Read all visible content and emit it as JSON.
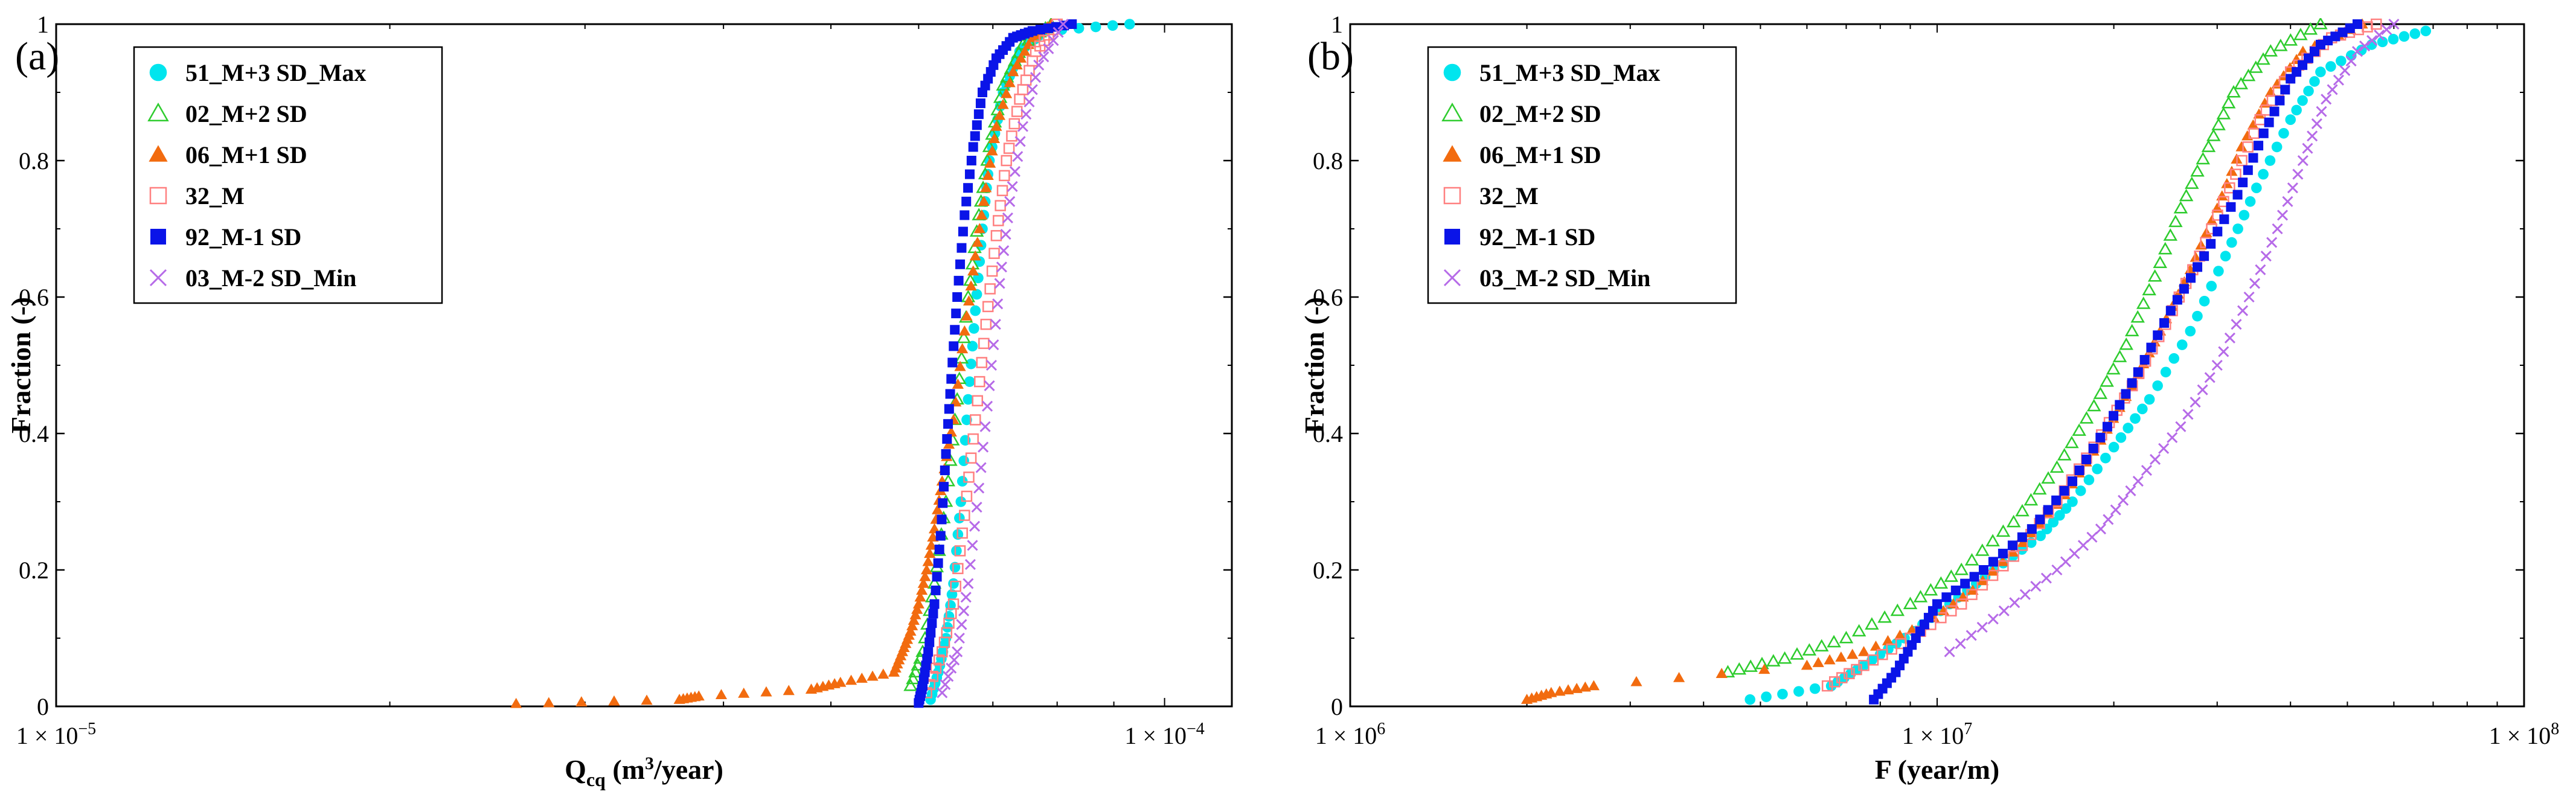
{
  "chart_data": [
    {
      "type": "scatter",
      "panel_label": "(a)",
      "xscale": "log",
      "xlim": [
        1e-05,
        0.000115
      ],
      "ylim": [
        0,
        1
      ],
      "xlabel_main": "Q",
      "xlabel_sub": "cq",
      "xlabel_unit_pre": " (m",
      "xlabel_unit_sup": "3",
      "xlabel_unit_post": "/year)",
      "ylabel": "Fraction (-)",
      "x_ticks": [
        {
          "value": 1e-05,
          "mant": "1",
          "base": " × 10",
          "exp": "−5"
        },
        {
          "value": 0.0001,
          "mant": "1",
          "base": " × 10",
          "exp": "−4"
        }
      ],
      "y_ticks": [
        {
          "value": 0,
          "label": "0"
        },
        {
          "value": 0.2,
          "label": "0.2"
        },
        {
          "value": 0.4,
          "label": "0.4"
        },
        {
          "value": 0.6,
          "label": "0.6"
        },
        {
          "value": 0.8,
          "label": "0.8"
        },
        {
          "value": 1,
          "label": "1"
        }
      ],
      "legend_position": "top-left",
      "series": [
        {
          "name": "51_M+3 SD_Max",
          "marker": "circle",
          "color": "#00e5ee",
          "filled": true,
          "points": [
            [
              6.15e-05,
              0.01
            ],
            [
              6.25e-05,
              0.05
            ],
            [
              6.35e-05,
              0.1
            ],
            [
              6.45e-05,
              0.18
            ],
            [
              6.55e-05,
              0.3
            ],
            [
              6.65e-05,
              0.45
            ],
            [
              6.75e-05,
              0.58
            ],
            [
              6.85e-05,
              0.7
            ],
            [
              6.95e-05,
              0.8
            ],
            [
              7.15e-05,
              0.9
            ],
            [
              7.4e-05,
              0.96
            ],
            [
              7.8e-05,
              0.99
            ],
            [
              9.3e-05,
              1.0
            ]
          ]
        },
        {
          "name": "02_M+2 SD",
          "marker": "triangle-open",
          "color": "#2ecc2e",
          "filled": false,
          "points": [
            [
              5.9e-05,
              0.03
            ],
            [
              6.05e-05,
              0.08
            ],
            [
              6.2e-05,
              0.18
            ],
            [
              6.35e-05,
              0.3
            ],
            [
              6.5e-05,
              0.45
            ],
            [
              6.65e-05,
              0.6
            ],
            [
              6.8e-05,
              0.72
            ],
            [
              6.95e-05,
              0.82
            ],
            [
              7.15e-05,
              0.91
            ],
            [
              7.45e-05,
              0.97
            ],
            [
              7.9e-05,
              1.0
            ]
          ]
        },
        {
          "name": "06_M+1 SD",
          "marker": "triangle",
          "color": "#f26b0f",
          "filled": true,
          "points": [
            [
              2.6e-05,
              0.004
            ],
            [
              3.65e-05,
              0.01
            ],
            [
              3.8e-05,
              0.015
            ],
            [
              4.8e-05,
              0.025
            ],
            [
              5.1e-05,
              0.035
            ],
            [
              5.7e-05,
              0.05
            ],
            [
              5.8e-05,
              0.08
            ],
            [
              5.9e-05,
              0.11
            ],
            [
              6e-05,
              0.15
            ],
            [
              6.1e-05,
              0.2
            ],
            [
              6.2e-05,
              0.26
            ],
            [
              6.3e-05,
              0.33
            ],
            [
              6.45e-05,
              0.42
            ],
            [
              6.6e-05,
              0.55
            ],
            [
              6.75e-05,
              0.66
            ],
            [
              6.9e-05,
              0.76
            ],
            [
              7.05e-05,
              0.85
            ],
            [
              7.3e-05,
              0.93
            ],
            [
              7.6e-05,
              0.98
            ],
            [
              7.9e-05,
              1.0
            ]
          ]
        },
        {
          "name": "32_M",
          "marker": "square-open",
          "color": "#ff8080",
          "filled": false,
          "points": [
            [
              6.1e-05,
              0.02
            ],
            [
              6.3e-05,
              0.08
            ],
            [
              6.45e-05,
              0.15
            ],
            [
              6.6e-05,
              0.28
            ],
            [
              6.75e-05,
              0.42
            ],
            [
              6.9e-05,
              0.56
            ],
            [
              7.05e-05,
              0.69
            ],
            [
              7.2e-05,
              0.8
            ],
            [
              7.4e-05,
              0.89
            ],
            [
              7.65e-05,
              0.96
            ],
            [
              8e-05,
              1.0
            ]
          ]
        },
        {
          "name": "92_M-1 SD",
          "marker": "square",
          "color": "#0a14e8",
          "filled": true,
          "points": [
            [
              6e-05,
              0.005
            ],
            [
              6.05e-05,
              0.03
            ],
            [
              6.12e-05,
              0.08
            ],
            [
              6.2e-05,
              0.15
            ],
            [
              6.28e-05,
              0.25
            ],
            [
              6.35e-05,
              0.37
            ],
            [
              6.42e-05,
              0.48
            ],
            [
              6.5e-05,
              0.6
            ],
            [
              6.6e-05,
              0.72
            ],
            [
              6.72e-05,
              0.82
            ],
            [
              6.85e-05,
              0.9
            ],
            [
              7.05e-05,
              0.95
            ],
            [
              7.3e-05,
              0.98
            ],
            [
              7.6e-05,
              0.99
            ],
            [
              8.25e-05,
              1.0
            ]
          ]
        },
        {
          "name": "03_M-2 SD_Min",
          "marker": "x",
          "color": "#b66be8",
          "filled": false,
          "points": [
            [
              6.3e-05,
              0.02
            ],
            [
              6.5e-05,
              0.08
            ],
            [
              6.65e-05,
              0.18
            ],
            [
              6.8e-05,
              0.32
            ],
            [
              6.95e-05,
              0.47
            ],
            [
              7.1e-05,
              0.62
            ],
            [
              7.25e-05,
              0.74
            ],
            [
              7.45e-05,
              0.85
            ],
            [
              7.7e-05,
              0.94
            ],
            [
              8.1e-05,
              1.0
            ]
          ]
        }
      ]
    },
    {
      "type": "scatter",
      "panel_label": "(b)",
      "xscale": "log",
      "xlim": [
        1000000.0,
        100000000.0
      ],
      "ylim": [
        0,
        1
      ],
      "xlabel_main": "F (year/m)",
      "xlabel_sub": "",
      "xlabel_unit_pre": "",
      "xlabel_unit_sup": "",
      "xlabel_unit_post": "",
      "ylabel": "Fraction (-)",
      "x_ticks": [
        {
          "value": 1000000.0,
          "mant": "1",
          "base": " × 10",
          "exp": "6"
        },
        {
          "value": 10000000.0,
          "mant": "1",
          "base": " × 10",
          "exp": "7"
        },
        {
          "value": 100000000.0,
          "mant": "1",
          "base": " × 10",
          "exp": "8"
        }
      ],
      "y_ticks": [
        {
          "value": 0,
          "label": "0"
        },
        {
          "value": 0.2,
          "label": "0.2"
        },
        {
          "value": 0.4,
          "label": "0.4"
        },
        {
          "value": 0.6,
          "label": "0.6"
        },
        {
          "value": 0.8,
          "label": "0.8"
        },
        {
          "value": 1,
          "label": "1"
        }
      ],
      "legend_position": "top-left",
      "series": [
        {
          "name": "51_M+3 SD_Max",
          "marker": "circle",
          "color": "#00e5ee",
          "filled": true,
          "points": [
            [
              4800000.0,
              0.01
            ],
            [
              6600000.0,
              0.03
            ],
            [
              7500000.0,
              0.06
            ],
            [
              8800000.0,
              0.1
            ],
            [
              10500000.0,
              0.15
            ],
            [
              12500000.0,
              0.2
            ],
            [
              15000000.0,
              0.25
            ],
            [
              17000000.0,
              0.3
            ],
            [
              20000000.0,
              0.38
            ],
            [
              23000000.0,
              0.45
            ],
            [
              27000000.0,
              0.55
            ],
            [
              31000000.0,
              0.66
            ],
            [
              35000000.0,
              0.76
            ],
            [
              40000000.0,
              0.86
            ],
            [
              45000000.0,
              0.93
            ],
            [
              55000000.0,
              0.97
            ],
            [
              68000000.0,
              0.99
            ]
          ]
        },
        {
          "name": "02_M+2 SD",
          "marker": "triangle-open",
          "color": "#2ecc2e",
          "filled": false,
          "points": [
            [
              4400000.0,
              0.05
            ],
            [
              5500000.0,
              0.07
            ],
            [
              7000000.0,
              0.1
            ],
            [
              9000000.0,
              0.15
            ],
            [
              11000000.0,
              0.2
            ],
            [
              13500000.0,
              0.27
            ],
            [
              16000000.0,
              0.35
            ],
            [
              18500000.0,
              0.44
            ],
            [
              21000000.0,
              0.53
            ],
            [
              23500000.0,
              0.63
            ],
            [
              26000000.0,
              0.73
            ],
            [
              29000000.0,
              0.82
            ],
            [
              32000000.0,
              0.9
            ],
            [
              37000000.0,
              0.96
            ],
            [
              45000000.0,
              1.0
            ]
          ]
        },
        {
          "name": "06_M+1 SD",
          "marker": "triangle",
          "color": "#f26b0f",
          "filled": true,
          "points": [
            [
              2000000.0,
              0.01
            ],
            [
              2200000.0,
              0.02
            ],
            [
              2600000.0,
              0.03
            ],
            [
              6000000.0,
              0.06
            ],
            [
              7500000.0,
              0.08
            ],
            [
              9500000.0,
              0.12
            ],
            [
              11500000.0,
              0.17
            ],
            [
              14000000.0,
              0.24
            ],
            [
              16500000.0,
              0.31
            ],
            [
              19000000.0,
              0.39
            ],
            [
              21500000.0,
              0.47
            ],
            [
              24000000.0,
              0.55
            ],
            [
              27000000.0,
              0.64
            ],
            [
              30000000.0,
              0.73
            ],
            [
              33000000.0,
              0.82
            ],
            [
              37000000.0,
              0.9
            ],
            [
              42000000.0,
              0.96
            ],
            [
              53000000.0,
              1.0
            ]
          ]
        },
        {
          "name": "32_M",
          "marker": "square-open",
          "color": "#ff8080",
          "filled": false,
          "points": [
            [
              6500000.0,
              0.03
            ],
            [
              7500000.0,
              0.06
            ],
            [
              9000000.0,
              0.1
            ],
            [
              11000000.0,
              0.15
            ],
            [
              13500000.0,
              0.22
            ],
            [
              16000000.0,
              0.3
            ],
            [
              18500000.0,
              0.38
            ],
            [
              21500000.0,
              0.47
            ],
            [
              24500000.0,
              0.56
            ],
            [
              28000000.0,
              0.66
            ],
            [
              31500000.0,
              0.76
            ],
            [
              35500000.0,
              0.86
            ],
            [
              40000000.0,
              0.93
            ],
            [
              47000000.0,
              0.98
            ],
            [
              56000000.0,
              1.0
            ]
          ]
        },
        {
          "name": "92_M-1 SD",
          "marker": "square",
          "color": "#0a14e8",
          "filled": true,
          "points": [
            [
              7800000.0,
              0.01
            ],
            [
              8500000.0,
              0.05
            ],
            [
              9200000.0,
              0.1
            ],
            [
              10000000.0,
              0.15
            ],
            [
              12000000.0,
              0.2
            ],
            [
              14500000.0,
              0.26
            ],
            [
              17000000.0,
              0.33
            ],
            [
              19500000.0,
              0.41
            ],
            [
              22000000.0,
              0.49
            ],
            [
              25000000.0,
              0.58
            ],
            [
              28500000.0,
              0.66
            ],
            [
              32500000.0,
              0.75
            ],
            [
              36000000.0,
              0.84
            ],
            [
              40000000.0,
              0.92
            ],
            [
              45000000.0,
              0.97
            ],
            [
              52000000.0,
              1.0
            ]
          ]
        },
        {
          "name": "03_M-2 SD_Min",
          "marker": "x",
          "color": "#b66be8",
          "filled": false,
          "points": [
            [
              10500000.0,
              0.08
            ],
            [
              13000000.0,
              0.14
            ],
            [
              16000000.0,
              0.2
            ],
            [
              19000000.0,
              0.26
            ],
            [
              22000000.0,
              0.33
            ],
            [
              26000000.0,
              0.41
            ],
            [
              30000000.0,
              0.5
            ],
            [
              34000000.0,
              0.6
            ],
            [
              38000000.0,
              0.7
            ],
            [
              42000000.0,
              0.8
            ],
            [
              46000000.0,
              0.89
            ],
            [
              52000000.0,
              0.96
            ],
            [
              60000000.0,
              1.0
            ]
          ]
        }
      ]
    }
  ]
}
